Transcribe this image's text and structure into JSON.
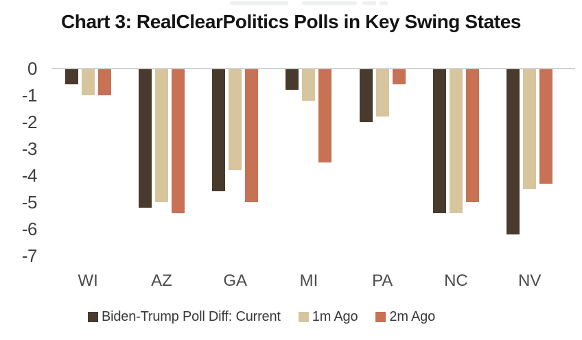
{
  "chart_data": {
    "type": "bar",
    "title": "Chart 3: RealClearPolitics Polls in Key Swing States",
    "categories": [
      "WI",
      "AZ",
      "GA",
      "MI",
      "PA",
      "NC",
      "NV"
    ],
    "series": [
      {
        "name": "Biden-Trump Poll Diff: Current",
        "color": "#483a2c",
        "values": [
          -0.6,
          -5.2,
          -4.6,
          -0.8,
          -2.0,
          -5.4,
          -6.2
        ]
      },
      {
        "name": "1m Ago",
        "color": "#d6c59d",
        "values": [
          -1.0,
          -5.0,
          -3.8,
          -1.2,
          -1.8,
          -5.4,
          -4.5
        ]
      },
      {
        "name": "2m Ago",
        "color": "#c77155",
        "values": [
          -1.0,
          -5.4,
          -5.0,
          -3.5,
          -0.6,
          -5.0,
          -4.3
        ]
      }
    ],
    "xlabel": "",
    "ylabel": "",
    "ylim": [
      -7,
      0
    ],
    "yticks": [
      0,
      -1,
      -2,
      -3,
      -4,
      -5,
      -6,
      -7
    ],
    "grid": false,
    "axis_line_color": "#d2d2d2",
    "legend_position": "bottom"
  }
}
